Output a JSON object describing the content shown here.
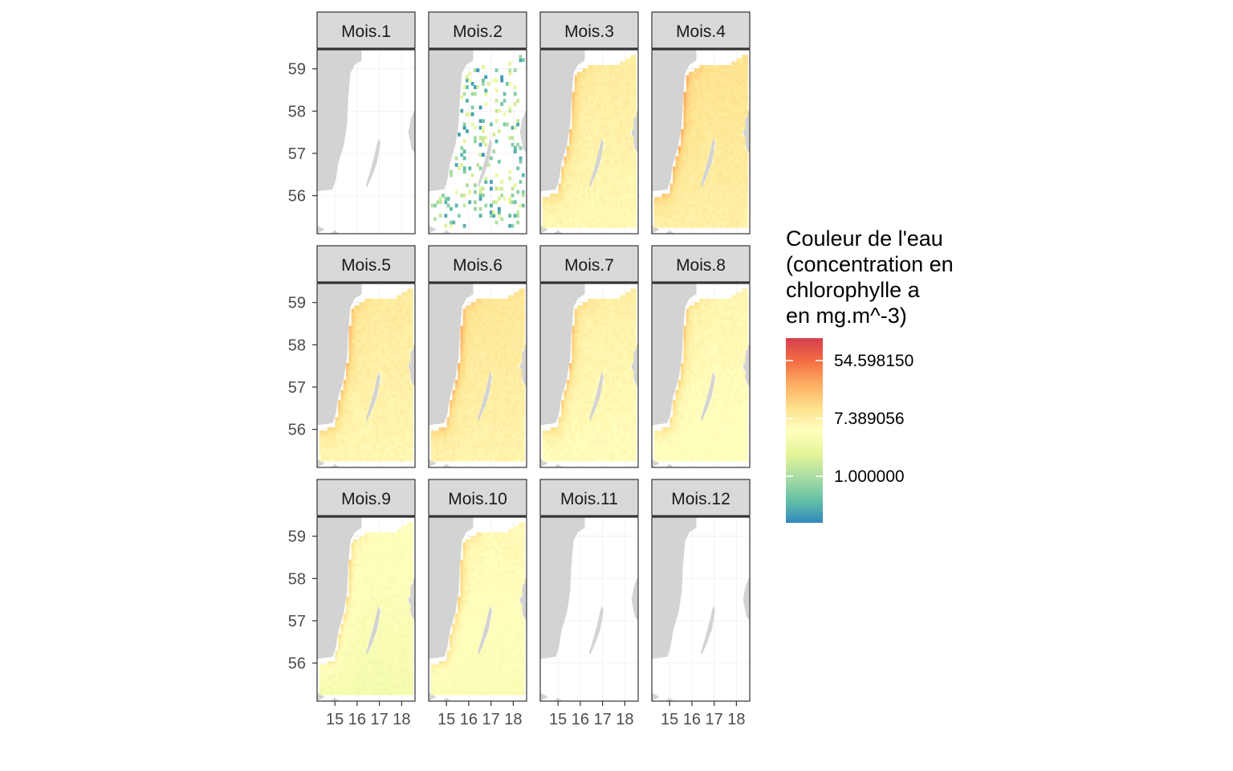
{
  "chart_data": {
    "type": "heatmap",
    "subtype": "faceted raster maps",
    "facets": [
      "Mois.1",
      "Mois.2",
      "Mois.3",
      "Mois.4",
      "Mois.5",
      "Mois.6",
      "Mois.7",
      "Mois.8",
      "Mois.9",
      "Mois.10",
      "Mois.11",
      "Mois.12"
    ],
    "ncol": 4,
    "x_ticks": [
      15,
      16,
      17,
      18
    ],
    "y_ticks": [
      56,
      57,
      58,
      59
    ],
    "xlim": [
      14.2,
      18.6
    ],
    "ylim": [
      55.1,
      59.45
    ],
    "legend": {
      "title_lines": [
        "Couleur de l'eau",
        "(concentration en",
        "chlorophylle a",
        "en mg.m^-3)"
      ],
      "breaks": [
        "54.598150",
        "7.389056",
        "1.000000"
      ],
      "break_values": [
        54.59815,
        7.389056,
        1.0
      ],
      "scale": "log",
      "range": [
        0.25,
        148.4
      ],
      "palette": [
        "#3288bd",
        "#66c2a5",
        "#abdda4",
        "#e6f598",
        "#ffffbf",
        "#fee08b",
        "#fdae61",
        "#f46d43",
        "#d53e4f"
      ],
      "position": "right"
    },
    "land_color": "#d3d3d3",
    "month_levels": {
      "Mois.1": null,
      "Mois.2": 1.3,
      "Mois.3": 7.5,
      "Mois.4": 9.5,
      "Mois.5": 7.8,
      "Mois.6": 8.6,
      "Mois.7": 6.8,
      "Mois.8": 6.0,
      "Mois.9": 4.6,
      "Mois.10": 5.4,
      "Mois.11": null,
      "Mois.12": null
    }
  }
}
